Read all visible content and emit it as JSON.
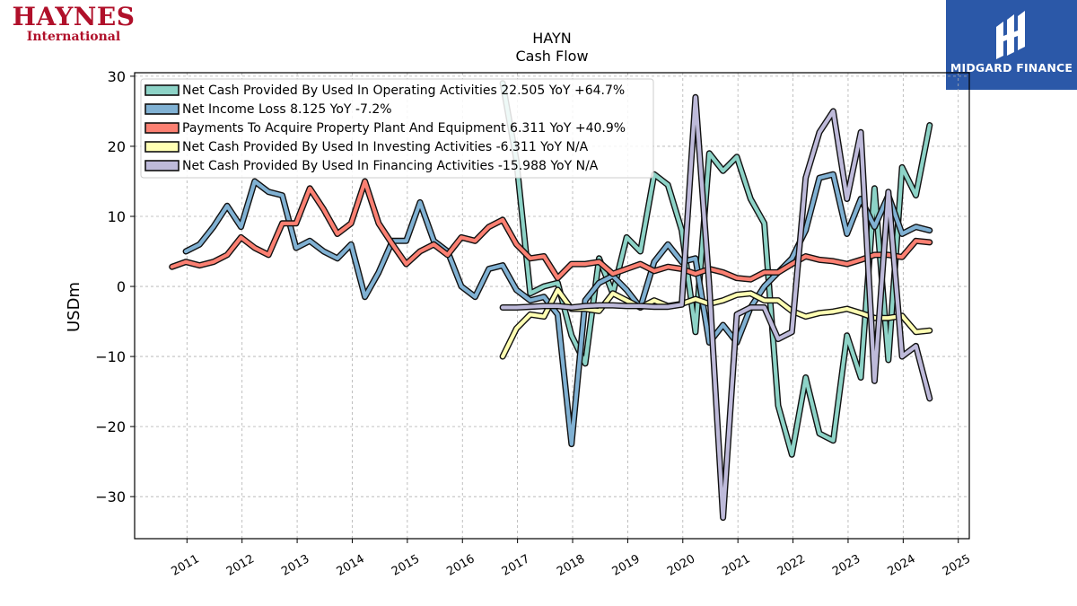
{
  "logos": {
    "left_brand": "HAYNES",
    "left_sub": "International",
    "right_name": "MIDGARD FINANCE"
  },
  "colors": {
    "operating": "#8dd3c7",
    "net_income": "#80b1d3",
    "capex": "#fb8072",
    "investing": "#ffffb3",
    "financing": "#bebada",
    "midgard_blue": "#2b58a8",
    "haynes_red": "#b0102a"
  },
  "chart_data": {
    "type": "line",
    "title": "HAYN",
    "subtitle": "Cash Flow",
    "ylabel": "USDm",
    "xlabel": "",
    "xlim": [
      2010.05,
      2025.2
    ],
    "ylim": [
      -36,
      30.5
    ],
    "yticks": [
      30,
      20,
      10,
      0,
      -10,
      -20,
      -30
    ],
    "ytick_labels": [
      "30",
      "20",
      "10",
      "0",
      "−10",
      "−20",
      "−30"
    ],
    "xticks": [
      2011,
      2012,
      2013,
      2014,
      2015,
      2016,
      2017,
      2018,
      2019,
      2020,
      2021,
      2022,
      2023,
      2024,
      2025
    ],
    "xtick_labels": [
      "2011",
      "2012",
      "2013",
      "2014",
      "2015",
      "2016",
      "2017",
      "2018",
      "2019",
      "2020",
      "2021",
      "2022",
      "2023",
      "2024",
      "2025"
    ],
    "grid": true,
    "legend_position": "top-left",
    "series": [
      {
        "name": "Net Cash Provided By Used In Operating Activities",
        "legend": "Net Cash Provided By Used In Operating Activities  22.505 YoY +64.7%",
        "color": "#8dd3c7",
        "points": [
          [
            2016.73,
            29
          ],
          [
            2016.98,
            18
          ],
          [
            2017.23,
            -1
          ],
          [
            2017.48,
            0
          ],
          [
            2017.73,
            0.5
          ],
          [
            2017.98,
            -7
          ],
          [
            2018.23,
            -11
          ],
          [
            2018.48,
            4
          ],
          [
            2018.73,
            -1
          ],
          [
            2018.98,
            7
          ],
          [
            2019.23,
            5
          ],
          [
            2019.48,
            16
          ],
          [
            2019.73,
            14.5
          ],
          [
            2019.98,
            8
          ],
          [
            2020.23,
            -6.5
          ],
          [
            2020.48,
            19
          ],
          [
            2020.73,
            16.5
          ],
          [
            2020.98,
            18.5
          ],
          [
            2021.23,
            12.5
          ],
          [
            2021.48,
            9
          ],
          [
            2021.73,
            -17
          ],
          [
            2021.98,
            -24
          ],
          [
            2022.23,
            -13
          ],
          [
            2022.48,
            -21
          ],
          [
            2022.73,
            -22
          ],
          [
            2022.98,
            -7
          ],
          [
            2023.23,
            -13
          ],
          [
            2023.48,
            14
          ],
          [
            2023.73,
            -10.5
          ],
          [
            2023.98,
            17
          ],
          [
            2024.23,
            13
          ],
          [
            2024.48,
            23
          ]
        ]
      },
      {
        "name": "Net Income Loss",
        "legend": "Net Income Loss  8.125 YoY -7.2%",
        "color": "#80b1d3",
        "points": [
          [
            2010.98,
            5
          ],
          [
            2011.23,
            6
          ],
          [
            2011.48,
            8.5
          ],
          [
            2011.73,
            11.5
          ],
          [
            2011.98,
            8.5
          ],
          [
            2012.23,
            15
          ],
          [
            2012.48,
            13.5
          ],
          [
            2012.73,
            13
          ],
          [
            2012.98,
            5.5
          ],
          [
            2013.23,
            6.5
          ],
          [
            2013.48,
            5
          ],
          [
            2013.73,
            4
          ],
          [
            2013.98,
            6
          ],
          [
            2014.23,
            -1.5
          ],
          [
            2014.48,
            2
          ],
          [
            2014.73,
            6.5
          ],
          [
            2014.98,
            6.5
          ],
          [
            2015.23,
            12
          ],
          [
            2015.48,
            6.5
          ],
          [
            2015.73,
            5
          ],
          [
            2015.98,
            0
          ],
          [
            2016.23,
            -1.5
          ],
          [
            2016.48,
            2.5
          ],
          [
            2016.73,
            3
          ],
          [
            2016.98,
            -0.5
          ],
          [
            2017.23,
            -2
          ],
          [
            2017.48,
            -1.5
          ],
          [
            2017.73,
            -4
          ],
          [
            2017.98,
            -22.5
          ],
          [
            2018.23,
            -2
          ],
          [
            2018.48,
            0.5
          ],
          [
            2018.73,
            1.5
          ],
          [
            2018.98,
            -0.5
          ],
          [
            2019.23,
            -3
          ],
          [
            2019.48,
            3.5
          ],
          [
            2019.73,
            6
          ],
          [
            2019.98,
            3.5
          ],
          [
            2020.23,
            4
          ],
          [
            2020.48,
            -8
          ],
          [
            2020.73,
            -5.5
          ],
          [
            2020.98,
            -8
          ],
          [
            2021.23,
            -3
          ],
          [
            2021.48,
            0
          ],
          [
            2021.73,
            2
          ],
          [
            2021.98,
            4
          ],
          [
            2022.23,
            8
          ],
          [
            2022.48,
            15.5
          ],
          [
            2022.73,
            16
          ],
          [
            2022.98,
            7.5
          ],
          [
            2023.23,
            12.5
          ],
          [
            2023.48,
            8.5
          ],
          [
            2023.73,
            13
          ],
          [
            2023.98,
            7.5
          ],
          [
            2024.23,
            8.5
          ],
          [
            2024.48,
            8
          ]
        ]
      },
      {
        "name": "Payments To Acquire Property Plant And Equipment",
        "legend": "Payments To Acquire Property Plant And Equipment  6.311 YoY +40.9%",
        "color": "#fb8072",
        "points": [
          [
            2010.73,
            2.8
          ],
          [
            2010.98,
            3.5
          ],
          [
            2011.23,
            3
          ],
          [
            2011.48,
            3.5
          ],
          [
            2011.73,
            4.5
          ],
          [
            2011.98,
            7
          ],
          [
            2012.23,
            5.5
          ],
          [
            2012.48,
            4.5
          ],
          [
            2012.73,
            9
          ],
          [
            2012.98,
            9
          ],
          [
            2013.23,
            14
          ],
          [
            2013.48,
            11
          ],
          [
            2013.73,
            7.5
          ],
          [
            2013.98,
            9
          ],
          [
            2014.23,
            15
          ],
          [
            2014.48,
            9
          ],
          [
            2014.73,
            6
          ],
          [
            2014.98,
            3.2
          ],
          [
            2015.23,
            5
          ],
          [
            2015.48,
            6
          ],
          [
            2015.73,
            4.5
          ],
          [
            2015.98,
            7
          ],
          [
            2016.23,
            6.5
          ],
          [
            2016.48,
            8.5
          ],
          [
            2016.73,
            9.5
          ],
          [
            2016.98,
            6
          ],
          [
            2017.23,
            4
          ],
          [
            2017.48,
            4.3
          ],
          [
            2017.73,
            1.2
          ],
          [
            2017.98,
            3.2
          ],
          [
            2018.23,
            3.2
          ],
          [
            2018.48,
            3.5
          ],
          [
            2018.73,
            1.8
          ],
          [
            2018.98,
            2.5
          ],
          [
            2019.23,
            3.2
          ],
          [
            2019.48,
            2.2
          ],
          [
            2019.73,
            2.8
          ],
          [
            2019.98,
            2.5
          ],
          [
            2020.23,
            1.8
          ],
          [
            2020.48,
            2.5
          ],
          [
            2020.73,
            2
          ],
          [
            2020.98,
            1.2
          ],
          [
            2021.23,
            1
          ],
          [
            2021.48,
            2
          ],
          [
            2021.73,
            2
          ],
          [
            2021.98,
            3.2
          ],
          [
            2022.23,
            4.3
          ],
          [
            2022.48,
            3.8
          ],
          [
            2022.73,
            3.6
          ],
          [
            2022.98,
            3.2
          ],
          [
            2023.23,
            3.8
          ],
          [
            2023.48,
            4.5
          ],
          [
            2023.73,
            4.5
          ],
          [
            2023.98,
            4.2
          ],
          [
            2024.23,
            6.5
          ],
          [
            2024.48,
            6.3
          ]
        ]
      },
      {
        "name": "Net Cash Provided By Used In Investing Activities",
        "legend": "Net Cash Provided By Used In Investing Activities  -6.311 YoY N/A",
        "color": "#ffffb3",
        "points": [
          [
            2016.73,
            -10
          ],
          [
            2016.98,
            -6
          ],
          [
            2017.23,
            -4
          ],
          [
            2017.48,
            -4.3
          ],
          [
            2017.73,
            -0.5
          ],
          [
            2017.98,
            -3.2
          ],
          [
            2018.23,
            -3.2
          ],
          [
            2018.48,
            -3.5
          ],
          [
            2018.73,
            -1
          ],
          [
            2018.98,
            -2
          ],
          [
            2019.23,
            -3
          ],
          [
            2019.48,
            -2
          ],
          [
            2019.73,
            -2.8
          ],
          [
            2019.98,
            -2.5
          ],
          [
            2020.23,
            -1.8
          ],
          [
            2020.48,
            -2.5
          ],
          [
            2020.73,
            -2
          ],
          [
            2020.98,
            -1.2
          ],
          [
            2021.23,
            -1
          ],
          [
            2021.48,
            -2
          ],
          [
            2021.73,
            -2
          ],
          [
            2021.98,
            -3.5
          ],
          [
            2022.23,
            -4.3
          ],
          [
            2022.48,
            -3.8
          ],
          [
            2022.73,
            -3.6
          ],
          [
            2022.98,
            -3.2
          ],
          [
            2023.23,
            -3.8
          ],
          [
            2023.48,
            -4.5
          ],
          [
            2023.73,
            -4.5
          ],
          [
            2023.98,
            -4.2
          ],
          [
            2024.23,
            -6.5
          ],
          [
            2024.48,
            -6.3
          ]
        ]
      },
      {
        "name": "Net Cash Provided By Used In Financing Activities",
        "legend": "Net Cash Provided By Used In Financing Activities  -15.988 YoY N/A",
        "color": "#bebada",
        "points": [
          [
            2016.73,
            -3
          ],
          [
            2016.98,
            -3
          ],
          [
            2017.23,
            -2.9
          ],
          [
            2017.48,
            -2.8
          ],
          [
            2017.73,
            -2.8
          ],
          [
            2017.98,
            -3
          ],
          [
            2018.23,
            -2.8
          ],
          [
            2018.48,
            -2.7
          ],
          [
            2018.73,
            -2.7
          ],
          [
            2018.98,
            -2.8
          ],
          [
            2019.23,
            -2.8
          ],
          [
            2019.48,
            -2.9
          ],
          [
            2019.73,
            -2.9
          ],
          [
            2019.98,
            -2.6
          ],
          [
            2020.23,
            27
          ],
          [
            2020.48,
            0
          ],
          [
            2020.73,
            -33
          ],
          [
            2020.98,
            -4
          ],
          [
            2021.23,
            -3
          ],
          [
            2021.48,
            -3
          ],
          [
            2021.73,
            -7.5
          ],
          [
            2021.98,
            -6.5
          ],
          [
            2022.23,
            15.5
          ],
          [
            2022.48,
            22
          ],
          [
            2022.73,
            25
          ],
          [
            2022.98,
            12.5
          ],
          [
            2023.23,
            22
          ],
          [
            2023.48,
            -13.5
          ],
          [
            2023.73,
            13.5
          ],
          [
            2023.98,
            -10
          ],
          [
            2024.23,
            -8.5
          ],
          [
            2024.48,
            -16
          ]
        ]
      }
    ]
  }
}
